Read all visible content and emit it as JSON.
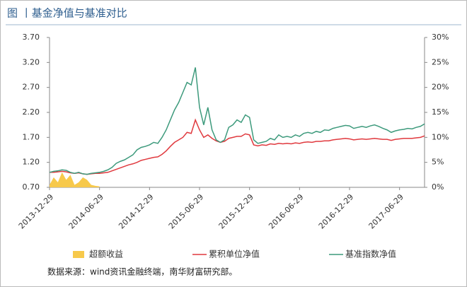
{
  "chart_data": {
    "type": "line",
    "title": "图 丨基金净值与基准对比",
    "source": "数据来源：wind资讯金融终端，南华财富研究部。",
    "categories": [
      "2013-12-29",
      null,
      null,
      null,
      null,
      null,
      null,
      null,
      null,
      null,
      null,
      null,
      "2014-06-29",
      null,
      null,
      null,
      null,
      null,
      null,
      null,
      null,
      null,
      null,
      null,
      "2014-12-29",
      null,
      null,
      null,
      null,
      null,
      null,
      null,
      null,
      null,
      null,
      null,
      "2015-06-29",
      null,
      null,
      null,
      null,
      null,
      null,
      null,
      null,
      null,
      null,
      null,
      "2015-12-29",
      null,
      null,
      null,
      null,
      null,
      null,
      null,
      null,
      null,
      null,
      null,
      "2016-06-29",
      null,
      null,
      null,
      null,
      null,
      null,
      null,
      null,
      null,
      null,
      null,
      "2016-12-29",
      null,
      null,
      null,
      null,
      null,
      null,
      null,
      null,
      null,
      null,
      null,
      "2017-06-29",
      null,
      null,
      null,
      null,
      null,
      null
    ],
    "ylim": [
      0.7,
      3.7
    ],
    "yticks": [
      {
        "value": 0.7,
        "label": "0.70"
      },
      {
        "value": 1.2,
        "label": "1.20"
      },
      {
        "value": 1.7,
        "label": "1.70"
      },
      {
        "value": 2.2,
        "label": "2.20"
      },
      {
        "value": 2.7,
        "label": "2.70"
      },
      {
        "value": 3.2,
        "label": "3.20"
      },
      {
        "value": 3.7,
        "label": "3.70"
      }
    ],
    "y2lim": [
      0,
      30
    ],
    "y2ticks": [
      {
        "value": 0,
        "label": "0%"
      },
      {
        "value": 5,
        "label": "5%"
      },
      {
        "value": 10,
        "label": "10%"
      },
      {
        "value": 15,
        "label": "15%"
      },
      {
        "value": 20,
        "label": "20%"
      },
      {
        "value": 25,
        "label": "25%"
      },
      {
        "value": 30,
        "label": "30%"
      }
    ],
    "grid": false,
    "series": [
      {
        "name": "超额收益",
        "type": "area",
        "axis": "y2",
        "color": "#f7c94b",
        "values": [
          0.5,
          2.0,
          1.0,
          3.0,
          1.5,
          2.5,
          0.5,
          1.0,
          2.0,
          1.5,
          0.5,
          0.3,
          0.2,
          null,
          null,
          null,
          null,
          null,
          null,
          null,
          null,
          null,
          null,
          null,
          null,
          null,
          null,
          null,
          null,
          null,
          null,
          null,
          null,
          null,
          null,
          null,
          null,
          null,
          null,
          null,
          null,
          null,
          null,
          null,
          null,
          null,
          null,
          null,
          null,
          null,
          null,
          null,
          null,
          null,
          null,
          null,
          null,
          null,
          null,
          null,
          null,
          null,
          null,
          null,
          null,
          null,
          null,
          null,
          null,
          null,
          null,
          null,
          null,
          null,
          null,
          null,
          null,
          null,
          null,
          null,
          null,
          null,
          null,
          null,
          null,
          null,
          null,
          null,
          null,
          null,
          null
        ]
      },
      {
        "name": "累积单位净值",
        "color": "#e0393e",
        "values": [
          1.0,
          1.0,
          1.01,
          1.02,
          1.01,
          0.99,
          0.98,
          0.99,
          0.97,
          0.96,
          0.97,
          0.98,
          0.98,
          0.99,
          1.0,
          1.03,
          1.06,
          1.09,
          1.12,
          1.15,
          1.17,
          1.2,
          1.24,
          1.26,
          1.28,
          1.3,
          1.31,
          1.36,
          1.43,
          1.52,
          1.6,
          1.65,
          1.7,
          1.8,
          1.78,
          2.05,
          1.85,
          1.7,
          1.75,
          1.68,
          1.63,
          1.6,
          1.62,
          1.68,
          1.7,
          1.72,
          1.72,
          1.77,
          1.75,
          1.55,
          1.53,
          1.55,
          1.54,
          1.57,
          1.56,
          1.58,
          1.57,
          1.58,
          1.57,
          1.59,
          1.58,
          1.6,
          1.61,
          1.6,
          1.62,
          1.62,
          1.63,
          1.63,
          1.65,
          1.66,
          1.67,
          1.68,
          1.67,
          1.65,
          1.66,
          1.67,
          1.66,
          1.67,
          1.68,
          1.67,
          1.66,
          1.66,
          1.64,
          1.66,
          1.67,
          1.68,
          1.68,
          1.68,
          1.69,
          1.7,
          1.73
        ]
      },
      {
        "name": "基准指数净值",
        "color": "#3d9a7c",
        "values": [
          1.0,
          1.02,
          1.03,
          1.05,
          1.04,
          1.0,
          0.98,
          1.0,
          0.97,
          0.96,
          0.98,
          0.99,
          1.0,
          1.02,
          1.05,
          1.1,
          1.18,
          1.22,
          1.25,
          1.3,
          1.35,
          1.45,
          1.5,
          1.52,
          1.55,
          1.6,
          1.58,
          1.7,
          1.85,
          2.05,
          2.25,
          2.4,
          2.6,
          2.8,
          2.75,
          3.1,
          2.3,
          1.95,
          2.3,
          1.85,
          1.65,
          1.6,
          1.65,
          1.9,
          1.95,
          2.05,
          2.0,
          2.15,
          2.1,
          1.65,
          1.58,
          1.6,
          1.62,
          1.68,
          1.65,
          1.75,
          1.7,
          1.72,
          1.7,
          1.75,
          1.72,
          1.78,
          1.8,
          1.78,
          1.82,
          1.8,
          1.85,
          1.84,
          1.88,
          1.9,
          1.92,
          1.94,
          1.93,
          1.88,
          1.9,
          1.92,
          1.9,
          1.93,
          1.95,
          1.92,
          1.88,
          1.85,
          1.8,
          1.83,
          1.85,
          1.86,
          1.88,
          1.87,
          1.9,
          1.92,
          1.97
        ]
      }
    ]
  }
}
